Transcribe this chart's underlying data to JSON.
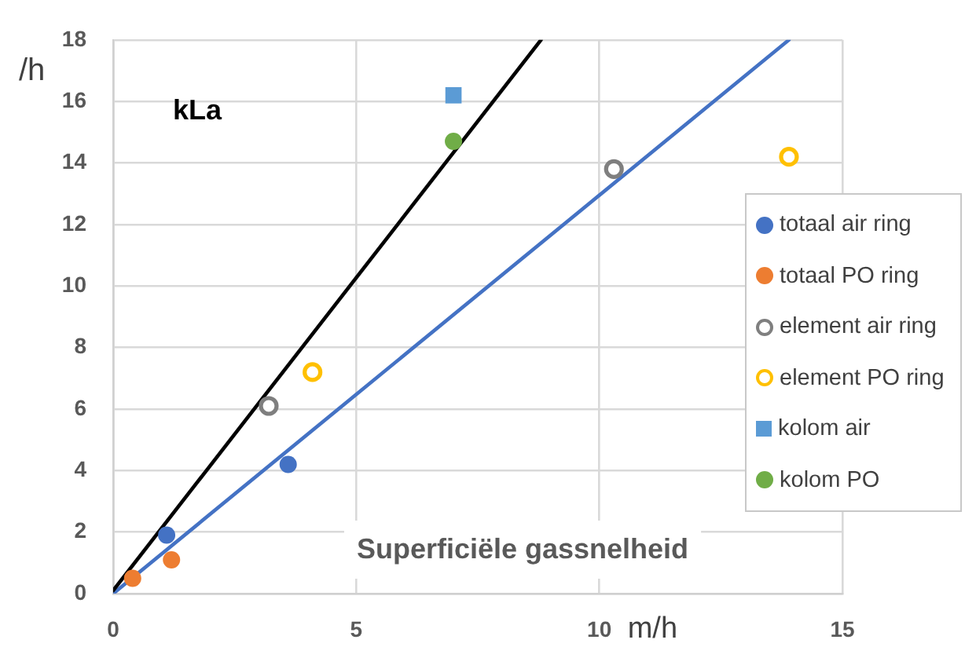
{
  "chart_data": {
    "type": "scatter",
    "title": "kLa",
    "xlabel": "m/h",
    "ylabel": "/h",
    "annotations": [
      "Superficiële gassnelheid"
    ],
    "xlim": [
      0,
      15
    ],
    "xticks": [
      0,
      5,
      10,
      15
    ],
    "ylim": [
      0,
      18
    ],
    "yticks": [
      0,
      2,
      4,
      6,
      8,
      10,
      12,
      14,
      16,
      18
    ],
    "grid": true,
    "legend": "right",
    "marker": "circle",
    "series": [
      {
        "name": "totaal air ring",
        "color": "#4472c4",
        "x": [
          1.1,
          3.6
        ],
        "values": [
          1.9,
          4.2
        ]
      },
      {
        "name": "totaal PO ring",
        "color": "#ed7d31",
        "x": [
          0.4,
          1.2
        ],
        "values": [
          0.5,
          1.1
        ]
      },
      {
        "name": "element air ring",
        "color": "#7f7f7f",
        "marker": "circle-open",
        "x": [
          3.2,
          10.3
        ],
        "values": [
          6.1,
          13.8
        ]
      },
      {
        "name": "element PO ring",
        "color": "#ffc000",
        "marker": "circle-open",
        "x": [
          4.1,
          13.9
        ],
        "values": [
          7.2,
          14.2
        ]
      },
      {
        "name": "kolom air",
        "color": "#5b9bd5",
        "marker": "square",
        "x": [
          7.0
        ],
        "values": [
          16.2
        ]
      },
      {
        "name": "kolom PO",
        "color": "#70ad47",
        "x": [
          7.0
        ],
        "values": [
          14.7
        ]
      },
      {
        "type": "line",
        "color": "#000000",
        "marker": "none",
        "x": [
          0,
          8.8
        ],
        "values": [
          0.1,
          18
        ]
      },
      {
        "type": "line",
        "color": "#4472c4",
        "marker": "none",
        "x": [
          0,
          13.9
        ],
        "values": [
          0,
          18
        ]
      }
    ]
  }
}
